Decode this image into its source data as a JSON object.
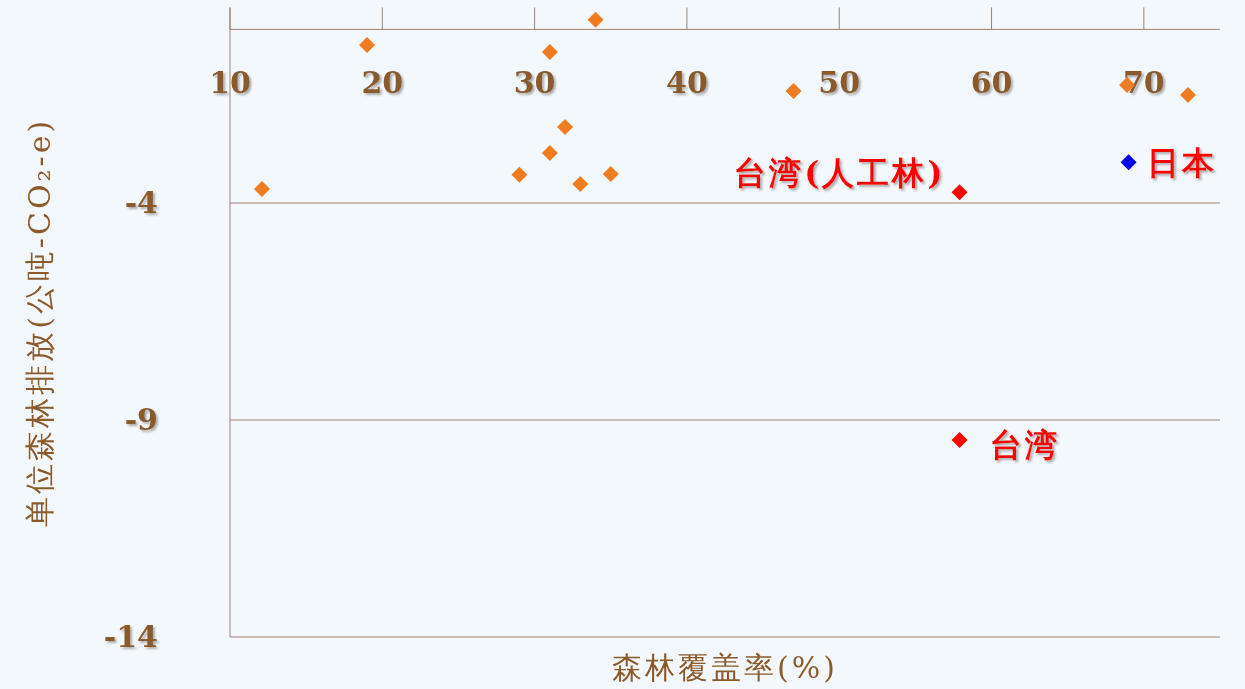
{
  "chart_data": {
    "type": "scatter",
    "xlabel": "森林覆盖率(%)",
    "ylabel": "单位森林排放(公吨-CO₂-e)",
    "xlim": [
      10,
      75
    ],
    "xticks": [
      10,
      20,
      30,
      40,
      50,
      60,
      70
    ],
    "ylim": [
      -14,
      0.5
    ],
    "yticks": [
      -4,
      -9,
      -14
    ],
    "grid": "y",
    "marker": "diamond",
    "series": [
      {
        "color": "#f07c22",
        "x": [
          12.1,
          19,
          31,
          34,
          47,
          68.9,
          72.9,
          32,
          31,
          29,
          33,
          35
        ],
        "values": [
          -3.68,
          -0.36,
          -0.52,
          0.22,
          -1.42,
          -1.28,
          -1.51,
          -2.25,
          -2.85,
          -3.35,
          -3.56,
          -3.33
        ]
      },
      {
        "name": "日本",
        "color": "#0000ee",
        "x": [
          69
        ],
        "values": [
          -3.06
        ]
      },
      {
        "name": "台湾(人工林)",
        "color": "#ff0000",
        "x": [
          57.9
        ],
        "values": [
          -3.75
        ]
      },
      {
        "name": "台湾",
        "color": "#ff0000",
        "x": [
          57.9
        ],
        "values": [
          -9.46
        ]
      }
    ]
  }
}
